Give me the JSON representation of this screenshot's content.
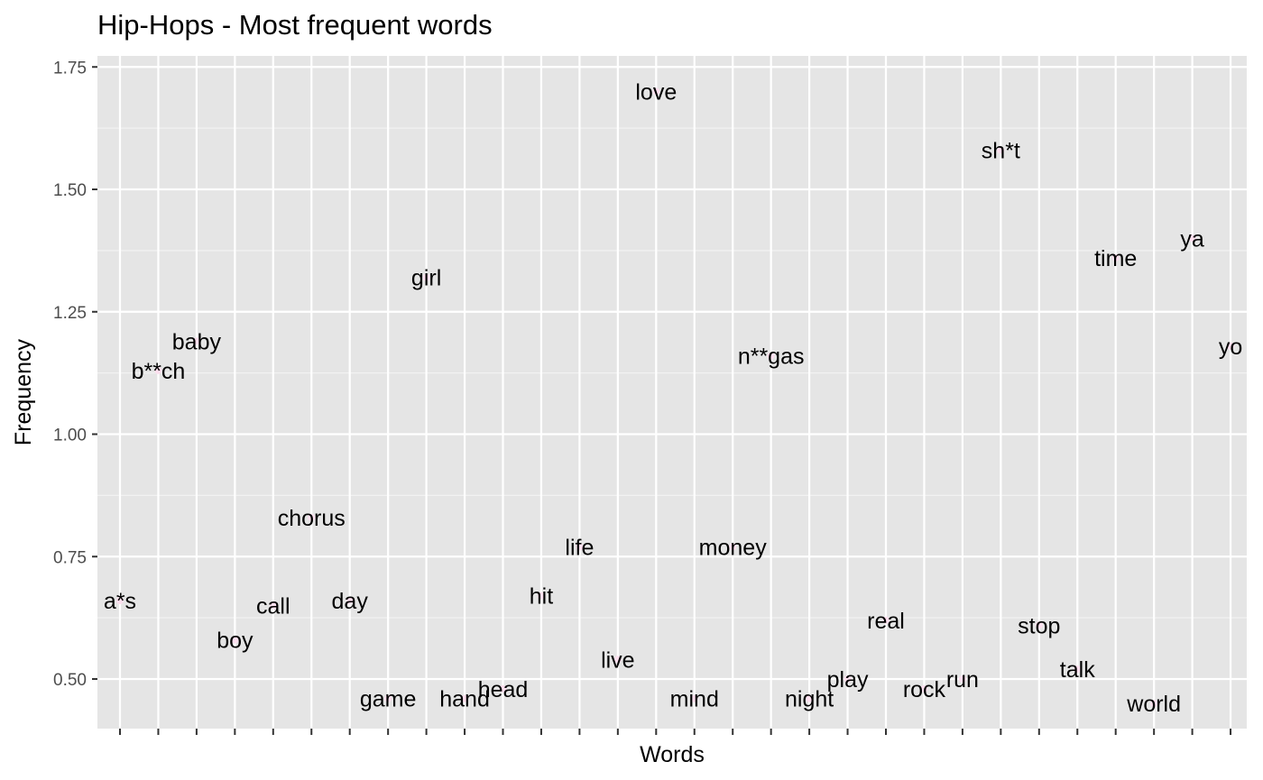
{
  "chart_data": {
    "type": "scatter",
    "title": "Hip-Hops - Most frequent words",
    "xlabel": "Words",
    "ylabel": "Frequency",
    "ylim": [
      0.4,
      1.78
    ],
    "yticks": [
      "0.50",
      "0.75",
      "1.00",
      "1.25",
      "1.50",
      "1.75"
    ],
    "grid": true,
    "legend": "none",
    "colors": {
      "panel": "#e5e5e5",
      "grid_major": "#ffffff",
      "grid_minor": "#f2f2f2",
      "point": "#fde0ef",
      "text": "#000000",
      "tick_text": "#4d4d4d"
    },
    "categories": [
      "a*s",
      "b**ch",
      "baby",
      "boy",
      "call",
      "chorus",
      "day",
      "game",
      "girl",
      "hand",
      "head",
      "hit",
      "life",
      "live",
      "love",
      "mind",
      "money",
      "n**gas",
      "night",
      "play",
      "real",
      "rock",
      "run",
      "sh*t",
      "stop",
      "talk",
      "time",
      "world",
      "ya",
      "yo"
    ],
    "values": [
      0.66,
      1.13,
      1.19,
      0.58,
      0.65,
      0.83,
      0.66,
      0.46,
      1.32,
      0.46,
      0.48,
      0.67,
      0.77,
      0.54,
      1.7,
      0.46,
      0.77,
      1.16,
      0.46,
      0.5,
      0.62,
      0.48,
      0.5,
      1.58,
      0.61,
      0.52,
      1.36,
      0.45,
      1.4,
      1.18
    ]
  }
}
